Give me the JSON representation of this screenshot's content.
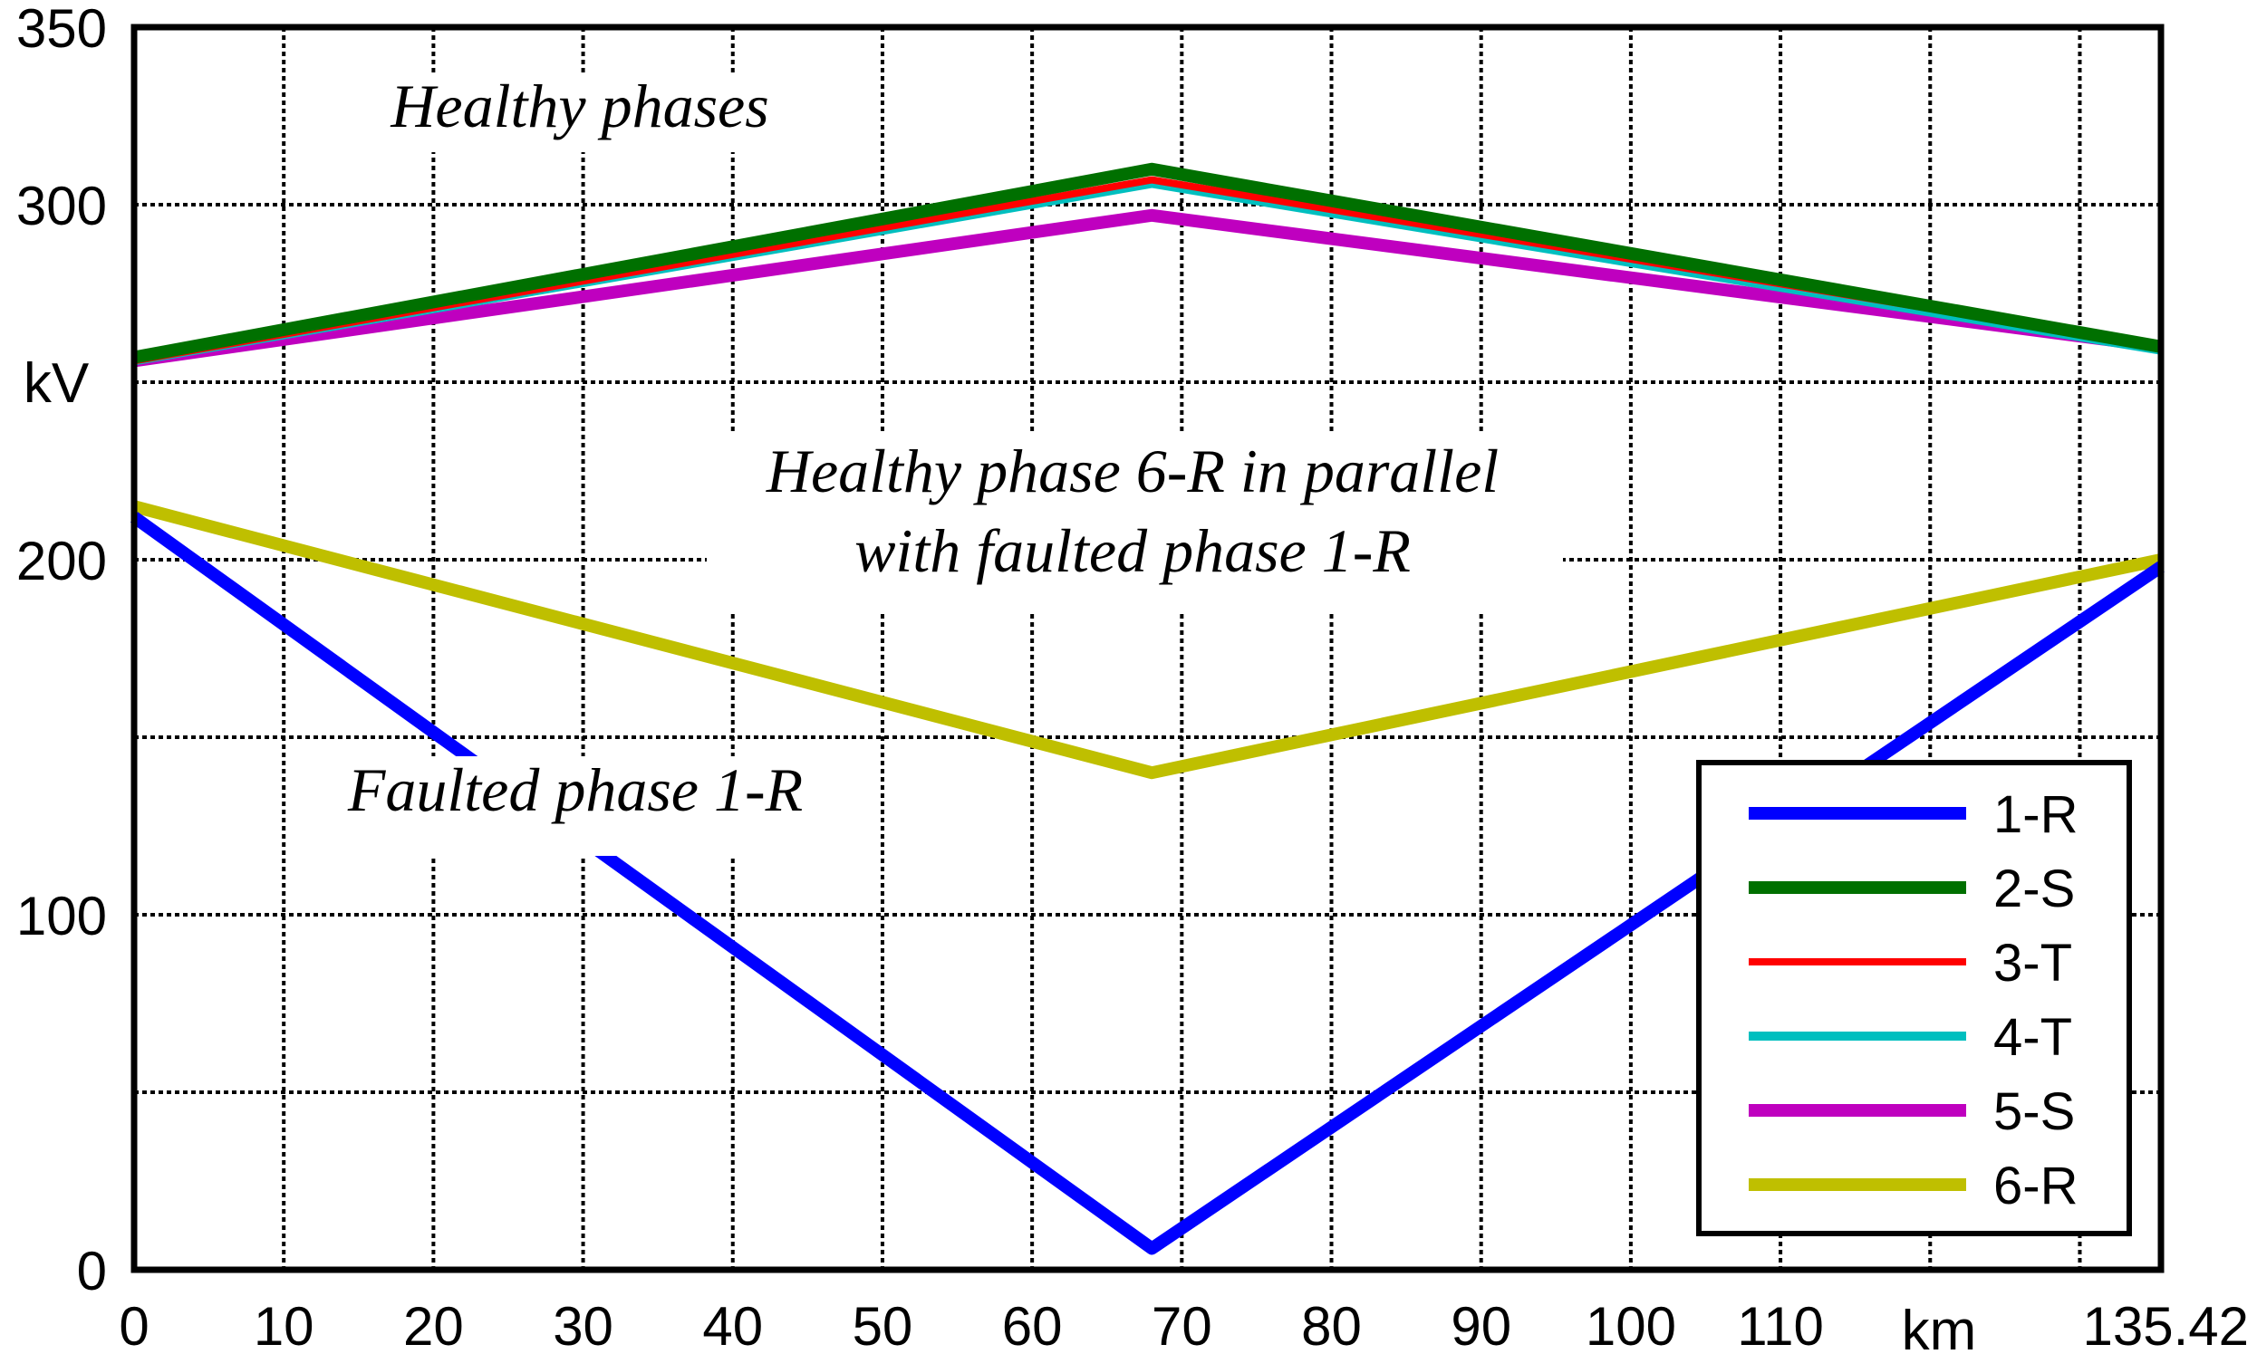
{
  "chart_data": {
    "type": "line",
    "title": "",
    "xlabel": "km",
    "ylabel": "kV",
    "xlim": [
      0,
      135.42
    ],
    "ylim": [
      0,
      350
    ],
    "x_ticks": [
      0,
      10,
      20,
      30,
      40,
      50,
      60,
      70,
      80,
      90,
      100,
      110,
      135.42
    ],
    "x_tick_labels": [
      "0",
      "10",
      "20",
      "30",
      "40",
      "50",
      "60",
      "70",
      "80",
      "90",
      "100",
      "110",
      "135.42"
    ],
    "x_grid": [
      0,
      10,
      20,
      30,
      40,
      50,
      60,
      70,
      80,
      90,
      100,
      110,
      120,
      130
    ],
    "y_ticks": [
      0,
      100,
      200,
      300,
      350
    ],
    "y_tick_labels": [
      "0",
      "100",
      "200",
      "300",
      "350"
    ],
    "y_grid": [
      50,
      100,
      150,
      200,
      250,
      300
    ],
    "grid": true,
    "legend_position": "bottom-right",
    "series": [
      {
        "name": "1-R",
        "color": "#0000ff",
        "width": 14,
        "x": [
          0,
          68,
          135.42
        ],
        "values": [
          212,
          6,
          198
        ]
      },
      {
        "name": "2-S",
        "color": "#007000",
        "width": 14,
        "x": [
          0,
          68,
          135.42
        ],
        "values": [
          257,
          310,
          260
        ]
      },
      {
        "name": "3-T",
        "color": "#ff0000",
        "width": 8,
        "x": [
          0,
          68,
          135.42
        ],
        "values": [
          256,
          307,
          260
        ]
      },
      {
        "name": "4-T",
        "color": "#00bfbf",
        "width": 10,
        "x": [
          0,
          68,
          135.42
        ],
        "values": [
          256,
          306,
          259
        ]
      },
      {
        "name": "5-S",
        "color": "#bf00bf",
        "width": 14,
        "x": [
          0,
          68,
          135.42
        ],
        "values": [
          256,
          297,
          260
        ]
      },
      {
        "name": "6-R",
        "color": "#bfbf00",
        "width": 14,
        "x": [
          0,
          68,
          135.42
        ],
        "values": [
          215,
          140,
          200
        ]
      }
    ],
    "annotations": [
      {
        "lines": [
          "Healthy phases"
        ]
      },
      {
        "lines": [
          "Healthy phase 6-R in parallel",
          "with faulted phase 1-R"
        ]
      },
      {
        "lines": [
          "Faulted phase 1-R"
        ]
      }
    ]
  }
}
